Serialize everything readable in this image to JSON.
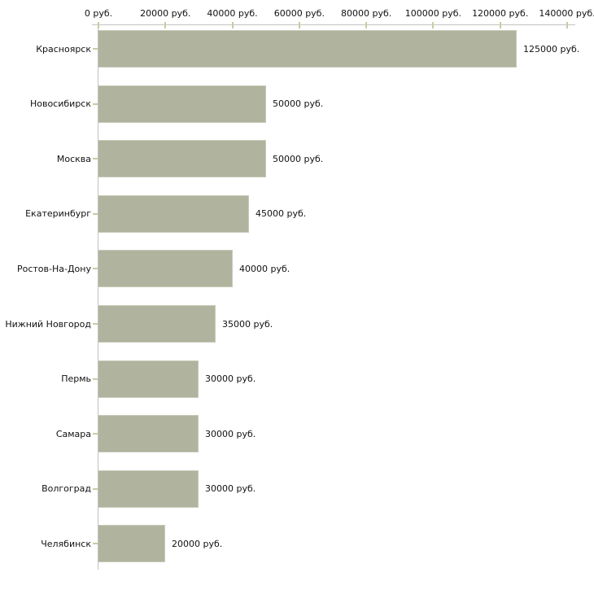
{
  "chart_data": {
    "type": "bar",
    "orientation": "horizontal",
    "title": "",
    "xlabel": "",
    "ylabel": "",
    "unit": "руб.",
    "categories": [
      "Красноярск",
      "Новосибирск",
      "Москва",
      "Екатеринбург",
      "Ростов-На-Дону",
      "Нижний Новгород",
      "Пермь",
      "Самара",
      "Волгоград",
      "Челябинск"
    ],
    "values": [
      125000,
      50000,
      50000,
      45000,
      40000,
      35000,
      30000,
      30000,
      30000,
      20000
    ],
    "value_labels": [
      "125000 руб.",
      "50000 руб.",
      "50000 руб.",
      "45000 руб.",
      "40000 руб.",
      "35000 руб.",
      "30000 руб.",
      "30000 руб.",
      "30000 руб.",
      "20000 руб."
    ],
    "x_ticks": [
      0,
      20000,
      40000,
      60000,
      80000,
      100000,
      120000,
      140000
    ],
    "x_tick_labels": [
      "0 руб.",
      "20000 руб.",
      "40000 руб.",
      "60000 руб.",
      "80000 руб.",
      "100000 руб.",
      "120000 руб.",
      "140000 руб."
    ],
    "xlim": [
      0,
      140000
    ],
    "grid": "off",
    "legend": "none",
    "colors": {
      "bar_fill": "#b0b49e",
      "bar_border": "#c7cab8",
      "axis_line": "#c2c2c2",
      "tick": "#cdc9a3",
      "text": "#111111",
      "background": "#ffffff"
    }
  }
}
